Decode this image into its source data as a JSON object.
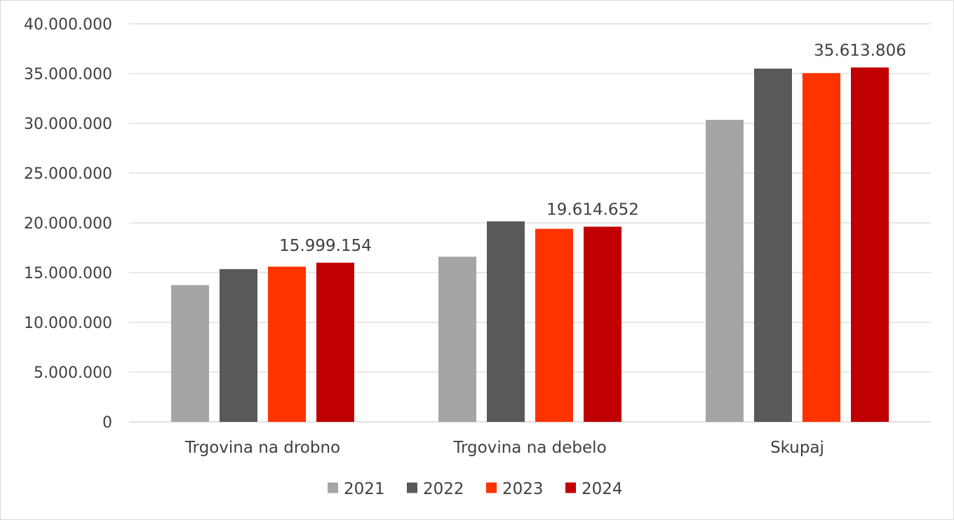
{
  "chart_data": {
    "type": "bar",
    "categories": [
      "Trgovina na drobno",
      "Trgovina na debelo",
      "Skupaj"
    ],
    "series": [
      {
        "name": "2021",
        "color": "#a5a5a5",
        "values": [
          13750000,
          16600000,
          30350000
        ]
      },
      {
        "name": "2022",
        "color": "#595959",
        "values": [
          15350000,
          20150000,
          35500000
        ]
      },
      {
        "name": "2023",
        "color": "#ff3300",
        "values": [
          15600000,
          19400000,
          35050000
        ]
      },
      {
        "name": "2024",
        "color": "#c00000",
        "values": [
          15999154,
          19614652,
          35613806
        ]
      }
    ],
    "data_labels": [
      {
        "series": "2024",
        "category": "Trgovina na drobno",
        "text": "15.999.154"
      },
      {
        "series": "2024",
        "category": "Trgovina na debelo",
        "text": "19.614.652"
      },
      {
        "series": "2024",
        "category": "Skupaj",
        "text": "35.613.806"
      }
    ],
    "y_ticks": [
      "0",
      "5.000.000",
      "10.000.000",
      "15.000.000",
      "20.000.000",
      "25.000.000",
      "30.000.000",
      "35.000.000",
      "40.000.000"
    ],
    "ylim": [
      0,
      40000000
    ],
    "y_step": 5000000,
    "title": "",
    "xlabel": "",
    "ylabel": "",
    "grid": true,
    "legend_position": "bottom-center"
  }
}
